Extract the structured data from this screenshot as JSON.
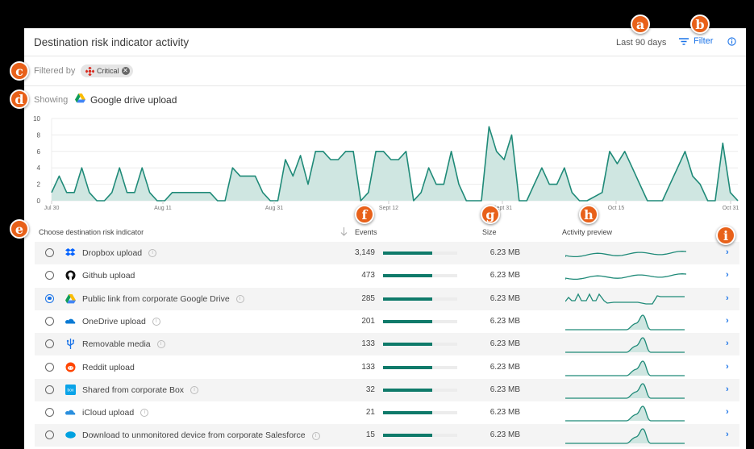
{
  "header": {
    "title": "Destination risk indicator activity",
    "range": "Last 90 days",
    "filter_label": "Filter",
    "info_icon": "info-icon"
  },
  "filter": {
    "label": "Filtered by",
    "chip_label": "Critical",
    "chip_icon": "critical-severity-icon"
  },
  "showing": {
    "label": "Showing",
    "name": "Google drive upload",
    "icon": "google-drive-icon"
  },
  "markers": [
    "a",
    "b",
    "c",
    "d",
    "e",
    "f",
    "g",
    "h",
    "i"
  ],
  "chart_data": {
    "type": "area",
    "title": "",
    "xlabel": "",
    "ylabel": "",
    "ylim": [
      0,
      10
    ],
    "yticks": [
      0,
      2,
      4,
      6,
      8,
      10
    ],
    "xtick_labels": [
      "Jul 30",
      "Aug 11",
      "Aug 31",
      "Sept 12",
      "Sept 31",
      "Oct 15",
      "Oct 31"
    ],
    "grid": true,
    "color": "#1f8a78",
    "fill": "#cfe6e1",
    "values": [
      1,
      3,
      1,
      1,
      4,
      1,
      0,
      0,
      1,
      4,
      1,
      1,
      4,
      1,
      0,
      0,
      1,
      1,
      1,
      1,
      1,
      1,
      0,
      0,
      4,
      3,
      3,
      3,
      1,
      0,
      0,
      5,
      3,
      5.5,
      2,
      6,
      6,
      5,
      5,
      6,
      6,
      0,
      1,
      6,
      6,
      5,
      5,
      6,
      0,
      1,
      4,
      2,
      2,
      6,
      2,
      0,
      0,
      0,
      9,
      6,
      5,
      8,
      0,
      0,
      2,
      4,
      2,
      2,
      4,
      1,
      0,
      0,
      0.5,
      1,
      6,
      4.5,
      6,
      4,
      2,
      0,
      0,
      0,
      2,
      4,
      6,
      3,
      2,
      0,
      0,
      7,
      1,
      0
    ]
  },
  "table": {
    "columns": {
      "name": "Choose destination risk indicator",
      "events": "Events",
      "size": "Size",
      "activity": "Activity preview"
    },
    "sort_icon": "sort-down-arrow-icon",
    "rows": [
      {
        "name": "Dropbox upload",
        "icon": "dropbox-icon",
        "info": true,
        "events": "3,149",
        "bar_pct": 66,
        "size": "6.23 MB",
        "selected": false,
        "spark": "wave"
      },
      {
        "name": "Github upload",
        "icon": "github-icon",
        "info": false,
        "events": "473",
        "bar_pct": 66,
        "size": "6.23 MB",
        "selected": false,
        "spark": "wave"
      },
      {
        "name": "Public link from corporate Google Drive",
        "icon": "google-drive-icon",
        "info": true,
        "events": "285",
        "bar_pct": 66,
        "size": "6.23 MB",
        "selected": true,
        "spark": "multi"
      },
      {
        "name": "OneDrive upload",
        "icon": "onedrive-icon",
        "info": true,
        "events": "201",
        "bar_pct": 66,
        "size": "6.23 MB",
        "selected": false,
        "spark": "peak"
      },
      {
        "name": "Removable media",
        "icon": "usb-icon",
        "info": true,
        "events": "133",
        "bar_pct": 66,
        "size": "6.23 MB",
        "selected": false,
        "spark": "peak"
      },
      {
        "name": "Reddit upload",
        "icon": "reddit-icon",
        "info": false,
        "events": "133",
        "bar_pct": 66,
        "size": "6.23 MB",
        "selected": false,
        "spark": "peak"
      },
      {
        "name": "Shared from corporate Box",
        "icon": "box-icon",
        "info": true,
        "events": "32",
        "bar_pct": 66,
        "size": "6.23 MB",
        "selected": false,
        "spark": "peak"
      },
      {
        "name": "iCloud upload",
        "icon": "icloud-icon",
        "info": true,
        "events": "21",
        "bar_pct": 66,
        "size": "6.23 MB",
        "selected": false,
        "spark": "peak"
      },
      {
        "name": "Download to unmonitored device from corporate Salesforce",
        "icon": "salesforce-icon",
        "info": true,
        "events": "15",
        "bar_pct": 66,
        "size": "6.23 MB",
        "selected": false,
        "spark": "peak"
      }
    ]
  }
}
